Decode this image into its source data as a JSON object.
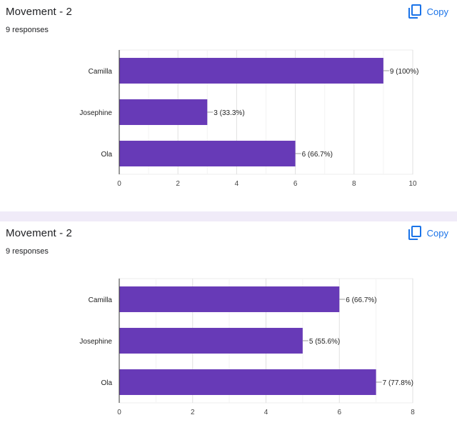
{
  "cards": [
    {
      "title": "Movement - 2",
      "responses": "9 responses",
      "copy_label": "Copy",
      "icon": "copy-icon"
    },
    {
      "title": "Movement - 2",
      "responses": "9 responses",
      "copy_label": "Copy",
      "icon": "copy-icon"
    }
  ],
  "chart_data": [
    {
      "type": "bar",
      "orientation": "horizontal",
      "categories": [
        "Camilla",
        "Josephine",
        "Ola"
      ],
      "values": [
        9,
        3,
        6
      ],
      "data_labels": [
        "9 (100%)",
        "3 (33.3%)",
        "6 (66.7%)"
      ],
      "xlim": [
        0,
        10
      ],
      "xticks": [
        0,
        2,
        4,
        6,
        8,
        10
      ],
      "bar_color": "#673ab7",
      "grid": true
    },
    {
      "type": "bar",
      "orientation": "horizontal",
      "categories": [
        "Camilla",
        "Josephine",
        "Ola"
      ],
      "values": [
        6,
        5,
        7
      ],
      "data_labels": [
        "6 (66.7%)",
        "5 (55.6%)",
        "7 (77.8%)"
      ],
      "xlim": [
        0,
        8
      ],
      "xticks": [
        0,
        2,
        4,
        6,
        8
      ],
      "bar_color": "#673ab7",
      "grid": true
    }
  ]
}
